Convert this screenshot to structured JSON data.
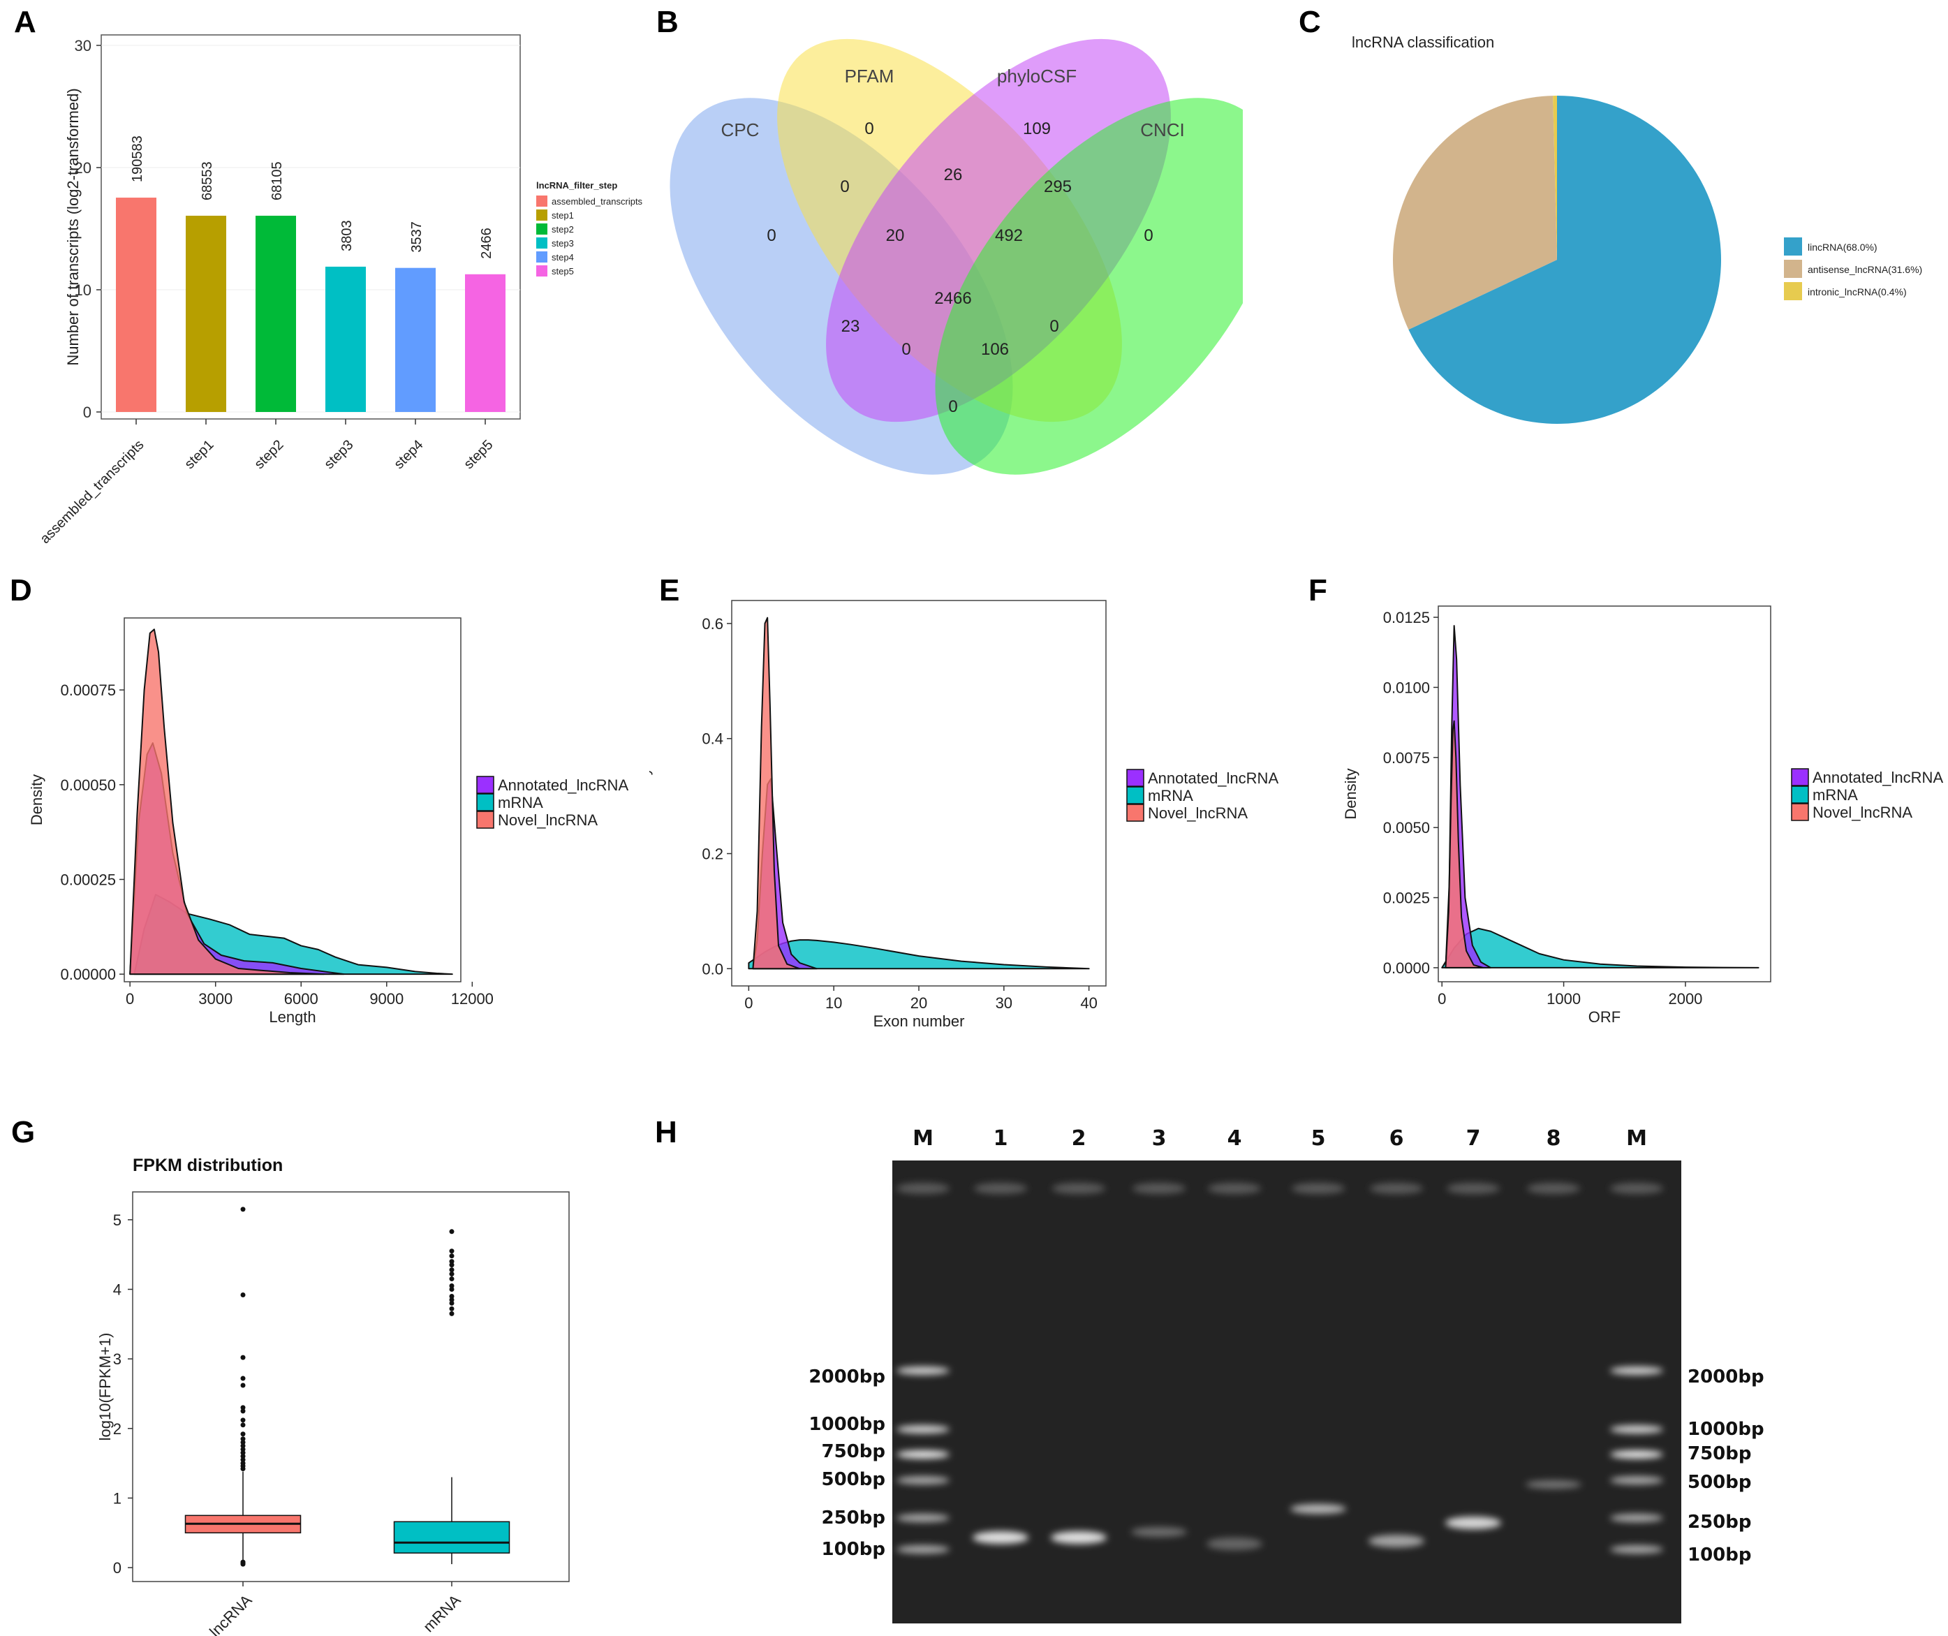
{
  "chart_data": [
    {
      "panel": "A",
      "type": "bar",
      "ylabel": "Number of transcripts (log2-transformed)",
      "ylim": [
        0,
        30
      ],
      "yticks": [
        "0",
        "10",
        "20",
        "30"
      ],
      "categories": [
        "assembled_transcripts",
        "step1",
        "step2",
        "step3",
        "step4",
        "step5"
      ],
      "values": [
        17.54,
        16.06,
        16.06,
        11.89,
        11.79,
        11.27
      ],
      "data_labels": [
        "190583",
        "68553",
        "68105",
        "3803",
        "3537",
        "2466"
      ],
      "colors": [
        "#F8766D",
        "#B79F00",
        "#00BA38",
        "#00BFC4",
        "#619CFF",
        "#F564E3"
      ],
      "legend_title": "lncRNA_filter_step",
      "legend": [
        "assembled_transcripts",
        "step1",
        "step2",
        "step3",
        "step4",
        "step5"
      ]
    },
    {
      "panel": "B",
      "type": "venn",
      "sets": [
        {
          "name": "CPC",
          "color": "#7FA7EF"
        },
        {
          "name": "PFAM",
          "color": "#F9E04B"
        },
        {
          "name": "phyloCSF",
          "color": "#C44BF5"
        },
        {
          "name": "CNCI",
          "color": "#2EF02E"
        }
      ],
      "regions": [
        "0",
        "0",
        "109",
        "26",
        "0",
        "295",
        "0",
        "20",
        "492",
        "2466",
        "23",
        "0",
        "106",
        "0",
        "0"
      ]
    },
    {
      "panel": "C",
      "type": "pie",
      "title": "lncRNA classification",
      "slices": [
        {
          "label": "lincRNA(68.0%)",
          "value": 68.0,
          "color": "#34A1CA"
        },
        {
          "label": "antisense_lncRNA(31.6%)",
          "value": 31.6,
          "color": "#D2B48C"
        },
        {
          "label": "intronic_lncRNA(0.4%)",
          "value": 0.4,
          "color": "#E7CB4F"
        }
      ]
    },
    {
      "panel": "D",
      "type": "area",
      "xlabel": "Length",
      "ylabel": "Density",
      "xlim": [
        -200,
        11600
      ],
      "ylim": [
        -2e-05,
        0.00094
      ],
      "xticks": [
        0,
        3000,
        6000,
        9000,
        12000
      ],
      "xtick_labels": [
        "0",
        "3000",
        "6000",
        "9000",
        "12000"
      ],
      "yticks": [
        0,
        0.00025,
        0.0005,
        0.00075
      ],
      "ytick_labels": [
        "0.00000",
        "0.00025",
        "0.00050",
        "0.00075"
      ],
      "legend": [
        "Annotated_lncRNA",
        "mRNA",
        "Novel_lncRNA"
      ],
      "series": [
        {
          "name": "mRNA",
          "color": "#00BFC4",
          "x": [
            150,
            500,
            900,
            1400,
            2000,
            2800,
            3500,
            4200,
            4800,
            5400,
            6000,
            6600,
            7200,
            8000,
            9000,
            10000,
            10800,
            11300
          ],
          "y": [
            0,
            0.00012,
            0.00021,
            0.00019,
            0.00016,
            0.000145,
            0.00013,
            0.000105,
            0.0001,
            9.5e-05,
            7.5e-05,
            6.5e-05,
            4.5e-05,
            2.5e-05,
            1.8e-05,
            7e-06,
            2e-06,
            0
          ]
        },
        {
          "name": "Annotated_lncRNA",
          "color": "#9B30FF",
          "x": [
            0,
            300,
            600,
            800,
            1100,
            1500,
            2000,
            2600,
            3200,
            4000,
            5000,
            6000,
            7000,
            7500
          ],
          "y": [
            0,
            0.0004,
            0.00058,
            0.00061,
            0.00053,
            0.00032,
            0.00016,
            8e-05,
            5e-05,
            3.5e-05,
            3e-05,
            1.5e-05,
            5e-06,
            0
          ]
        },
        {
          "name": "Novel_lncRNA",
          "color": "#F8766D",
          "x": [
            0,
            250,
            500,
            700,
            850,
            1000,
            1200,
            1500,
            1900,
            2400,
            3000,
            3800,
            4600,
            5600,
            6800
          ],
          "y": [
            0,
            0.00042,
            0.00075,
            0.0009,
            0.00091,
            0.00085,
            0.00065,
            0.0004,
            0.00019,
            9e-05,
            4e-05,
            1.5e-05,
            1e-05,
            4e-06,
            0
          ]
        }
      ]
    },
    {
      "panel": "E",
      "type": "area",
      "xlabel": "Exon number",
      "ylabel": "Density",
      "xlim": [
        -2,
        42
      ],
      "ylim": [
        -0.03,
        0.64
      ],
      "xticks": [
        0,
        10,
        20,
        30,
        40
      ],
      "xtick_labels": [
        "0",
        "10",
        "20",
        "30",
        "40"
      ],
      "yticks": [
        0,
        0.2,
        0.4,
        0.6
      ],
      "ytick_labels": [
        "0.0",
        "0.2",
        "0.4",
        "0.6"
      ],
      "legend": [
        "Annotated_lncRNA",
        "mRNA",
        "Novel_lncRNA"
      ],
      "series": [
        {
          "name": "mRNA",
          "color": "#00BFC4",
          "x": [
            0,
            1,
            2,
            3,
            4,
            5,
            6,
            7,
            8,
            10,
            12,
            15,
            20,
            25,
            30,
            35,
            40
          ],
          "y": [
            0.01,
            0.02,
            0.03,
            0.038,
            0.044,
            0.048,
            0.05,
            0.05,
            0.049,
            0.046,
            0.042,
            0.035,
            0.022,
            0.013,
            0.007,
            0.003,
            0
          ]
        },
        {
          "name": "Annotated_lncRNA",
          "color": "#9B30FF",
          "x": [
            0.5,
            1,
            1.6,
            2.2,
            2.6,
            3.2,
            4,
            5,
            6,
            8
          ],
          "y": [
            0,
            0.05,
            0.2,
            0.32,
            0.33,
            0.22,
            0.08,
            0.025,
            0.01,
            0
          ]
        },
        {
          "name": "Novel_lncRNA",
          "color": "#F8766D",
          "x": [
            0.5,
            1,
            1.5,
            1.9,
            2.2,
            2.5,
            3,
            3.5,
            4.5,
            6
          ],
          "y": [
            0,
            0.1,
            0.42,
            0.6,
            0.61,
            0.46,
            0.17,
            0.04,
            0.008,
            0
          ]
        }
      ]
    },
    {
      "panel": "F",
      "type": "area",
      "xlabel": "ORF",
      "ylabel": "Density",
      "xlim": [
        -30,
        2700
      ],
      "ylim": [
        -0.0005,
        0.0129
      ],
      "xticks": [
        0,
        1000,
        2000
      ],
      "xtick_labels": [
        "0",
        "1000",
        "2000"
      ],
      "yticks": [
        0,
        0.0025,
        0.005,
        0.0075,
        0.01,
        0.0125
      ],
      "ytick_labels": [
        "0.0000",
        "0.0025",
        "0.0050",
        "0.0075",
        "0.0100",
        "0.0125"
      ],
      "legend": [
        "Annotated_lncRNA",
        "mRNA",
        "Novel_lncRNA"
      ],
      "series": [
        {
          "name": "mRNA",
          "color": "#00BFC4",
          "x": [
            0,
            100,
            200,
            300,
            400,
            600,
            800,
            1000,
            1300,
            1600,
            2000,
            2300,
            2600
          ],
          "y": [
            0,
            0.0007,
            0.0012,
            0.0014,
            0.0013,
            0.0009,
            0.0005,
            0.00028,
            0.00013,
            6e-05,
            2e-05,
            6e-06,
            0
          ]
        },
        {
          "name": "Annotated_lncRNA",
          "color": "#9B30FF",
          "x": [
            30,
            60,
            80,
            100,
            120,
            150,
            190,
            250,
            320,
            400
          ],
          "y": [
            0,
            0.003,
            0.0085,
            0.0122,
            0.011,
            0.0065,
            0.0025,
            0.0008,
            0.0002,
            0
          ]
        },
        {
          "name": "Novel_lncRNA",
          "color": "#F8766D",
          "x": [
            30,
            55,
            75,
            90,
            100,
            115,
            135,
            160,
            200,
            260,
            340
          ],
          "y": [
            0,
            0.002,
            0.006,
            0.0085,
            0.0088,
            0.0075,
            0.0045,
            0.0018,
            0.0006,
            0.0001,
            0
          ]
        }
      ]
    },
    {
      "panel": "G",
      "type": "boxplot",
      "title": "FPKM distribution",
      "ylabel": "log10(FPKM+1)",
      "ylim": [
        -0.2,
        5.4
      ],
      "yticks": [
        "0",
        "1",
        "2",
        "3",
        "4",
        "5"
      ],
      "categories": [
        "lncRNA",
        "mRNA"
      ],
      "boxes": [
        {
          "name": "lncRNA",
          "color": "#F8766D",
          "q1": 0.5,
          "median": 0.63,
          "q3": 0.75,
          "lower_whisker": 0.1,
          "upper_whisker": 1.38,
          "outliers": [
            5.15,
            3.92,
            3.02,
            2.72,
            2.62,
            2.3,
            2.25,
            2.12,
            2.05,
            1.92,
            1.85,
            1.8,
            1.75,
            1.7,
            1.65,
            1.6,
            1.55,
            1.5,
            1.46,
            1.42,
            0.08,
            0.06,
            0.05
          ]
        },
        {
          "name": "mRNA",
          "color": "#00BFC4",
          "q1": 0.21,
          "median": 0.36,
          "q3": 0.66,
          "lower_whisker": 0.05,
          "upper_whisker": 1.3,
          "outliers": [
            4.83,
            4.55,
            4.48,
            4.4,
            4.35,
            4.28,
            4.22,
            4.15,
            4.05,
            4.0,
            3.9,
            3.85,
            3.8,
            3.72,
            3.65
          ]
        }
      ]
    }
  ],
  "panel_labels": [
    "A",
    "B",
    "C",
    "D",
    "E",
    "F",
    "G",
    "H"
  ],
  "gel": {
    "lanes": [
      "M",
      "1",
      "2",
      "3",
      "4",
      "5",
      "6",
      "7",
      "8",
      "M"
    ],
    "markers_left": [
      "2000bp",
      "1000bp",
      "750bp",
      "500bp",
      "250bp",
      "100bp"
    ],
    "markers_right": [
      "2000bp",
      "1000bp",
      "750bp",
      "500bp",
      "250bp",
      "100bp"
    ]
  }
}
